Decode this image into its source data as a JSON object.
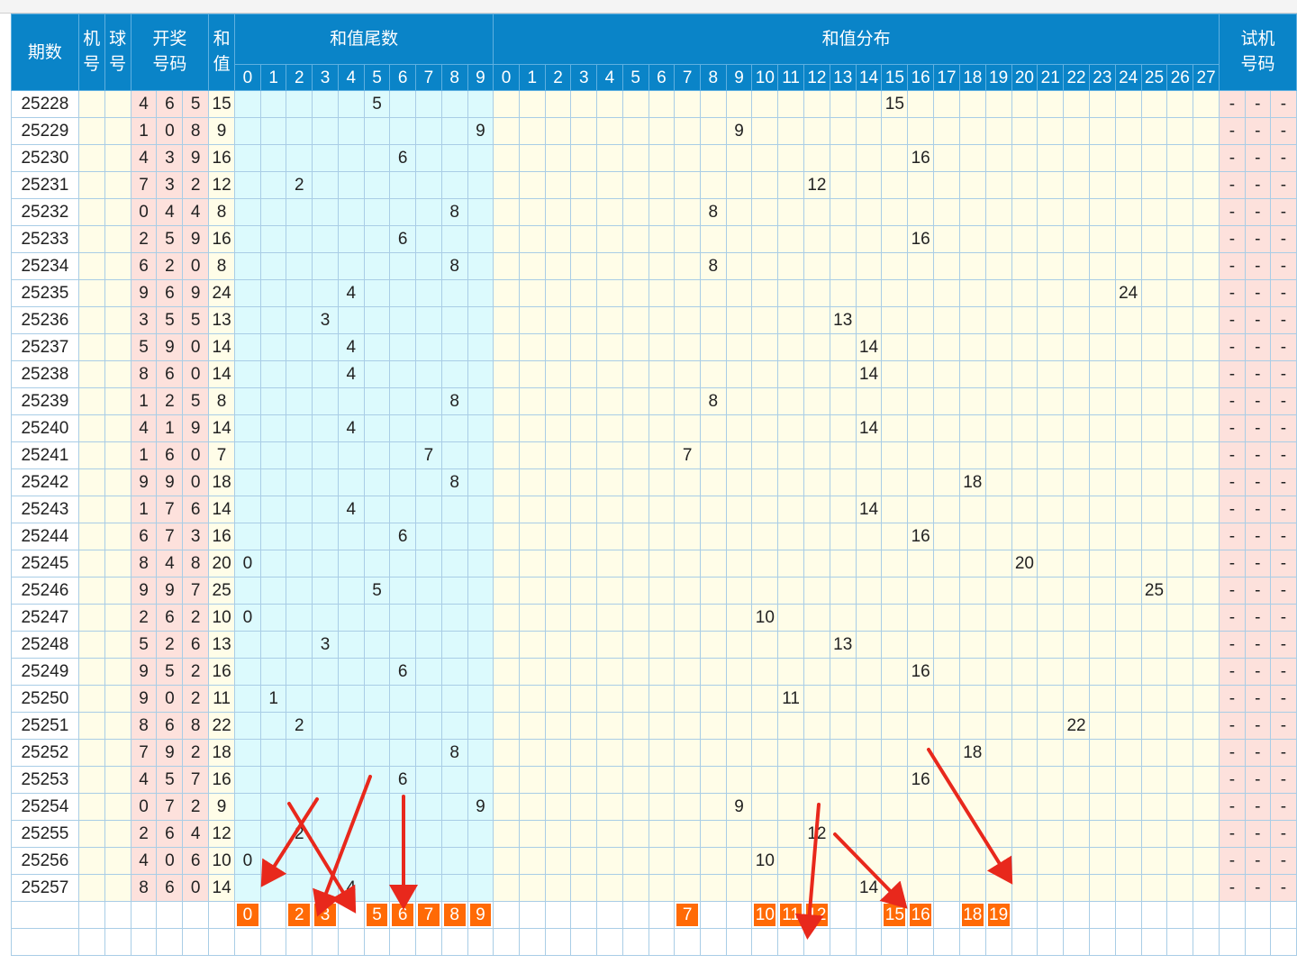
{
  "header": {
    "period": "期数",
    "machine": "机号",
    "ball": "球号",
    "draw_numbers": "开奖号码",
    "sum": "和值",
    "tail_group": "和值尾数",
    "dist_group": "和值分布",
    "trial": "试机号码"
  },
  "tail_digits": [
    "0",
    "1",
    "2",
    "3",
    "4",
    "5",
    "6",
    "7",
    "8",
    "9"
  ],
  "dist_values": [
    "0",
    "1",
    "2",
    "3",
    "4",
    "5",
    "6",
    "7",
    "8",
    "9",
    "10",
    "11",
    "12",
    "13",
    "14",
    "15",
    "16",
    "17",
    "18",
    "19",
    "20",
    "21",
    "22",
    "23",
    "24",
    "25",
    "26",
    "27"
  ],
  "trial_placeholder": "-",
  "rows": [
    {
      "period": "25228",
      "nums": [
        "4",
        "6",
        "5"
      ],
      "sum": "15"
    },
    {
      "period": "25229",
      "nums": [
        "1",
        "0",
        "8"
      ],
      "sum": "9"
    },
    {
      "period": "25230",
      "nums": [
        "4",
        "3",
        "9"
      ],
      "sum": "16"
    },
    {
      "period": "25231",
      "nums": [
        "7",
        "3",
        "2"
      ],
      "sum": "12"
    },
    {
      "period": "25232",
      "nums": [
        "0",
        "4",
        "4"
      ],
      "sum": "8"
    },
    {
      "period": "25233",
      "nums": [
        "2",
        "5",
        "9"
      ],
      "sum": "16"
    },
    {
      "period": "25234",
      "nums": [
        "6",
        "2",
        "0"
      ],
      "sum": "8"
    },
    {
      "period": "25235",
      "nums": [
        "9",
        "6",
        "9"
      ],
      "sum": "24"
    },
    {
      "period": "25236",
      "nums": [
        "3",
        "5",
        "5"
      ],
      "sum": "13"
    },
    {
      "period": "25237",
      "nums": [
        "5",
        "9",
        "0"
      ],
      "sum": "14"
    },
    {
      "period": "25238",
      "nums": [
        "8",
        "6",
        "0"
      ],
      "sum": "14"
    },
    {
      "period": "25239",
      "nums": [
        "1",
        "2",
        "5"
      ],
      "sum": "8"
    },
    {
      "period": "25240",
      "nums": [
        "4",
        "1",
        "9"
      ],
      "sum": "14"
    },
    {
      "period": "25241",
      "nums": [
        "1",
        "6",
        "0"
      ],
      "sum": "7"
    },
    {
      "period": "25242",
      "nums": [
        "9",
        "9",
        "0"
      ],
      "sum": "18"
    },
    {
      "period": "25243",
      "nums": [
        "1",
        "7",
        "6"
      ],
      "sum": "14"
    },
    {
      "period": "25244",
      "nums": [
        "6",
        "7",
        "3"
      ],
      "sum": "16"
    },
    {
      "period": "25245",
      "nums": [
        "8",
        "4",
        "8"
      ],
      "sum": "20"
    },
    {
      "period": "25246",
      "nums": [
        "9",
        "9",
        "7"
      ],
      "sum": "25"
    },
    {
      "period": "25247",
      "nums": [
        "2",
        "6",
        "2"
      ],
      "sum": "10"
    },
    {
      "period": "25248",
      "nums": [
        "5",
        "2",
        "6"
      ],
      "sum": "13"
    },
    {
      "period": "25249",
      "nums": [
        "9",
        "5",
        "2"
      ],
      "sum": "16"
    },
    {
      "period": "25250",
      "nums": [
        "9",
        "0",
        "2"
      ],
      "sum": "11"
    },
    {
      "period": "25251",
      "nums": [
        "8",
        "6",
        "8"
      ],
      "sum": "22"
    },
    {
      "period": "25252",
      "nums": [
        "7",
        "9",
        "2"
      ],
      "sum": "18"
    },
    {
      "period": "25253",
      "nums": [
        "4",
        "5",
        "7"
      ],
      "sum": "16"
    },
    {
      "period": "25254",
      "nums": [
        "0",
        "7",
        "2"
      ],
      "sum": "9"
    },
    {
      "period": "25255",
      "nums": [
        "2",
        "6",
        "4"
      ],
      "sum": "12"
    },
    {
      "period": "25256",
      "nums": [
        "4",
        "0",
        "6"
      ],
      "sum": "10"
    },
    {
      "period": "25257",
      "nums": [
        "8",
        "6",
        "0"
      ],
      "sum": "14"
    }
  ],
  "selected_tails": [
    "0",
    "2",
    "3",
    "5",
    "6",
    "7",
    "8",
    "9"
  ],
  "selected_sums": [
    "7",
    "10",
    "11",
    "12",
    "15",
    "16",
    "18",
    "19"
  ],
  "colors": {
    "header_bg": "#0a84c8",
    "tail_bg": "#dcfafd",
    "dist_bg": "#fffde8",
    "number_bg": "#fde1dc",
    "highlight": "#ff6a06",
    "arrow": "#e8281c"
  }
}
